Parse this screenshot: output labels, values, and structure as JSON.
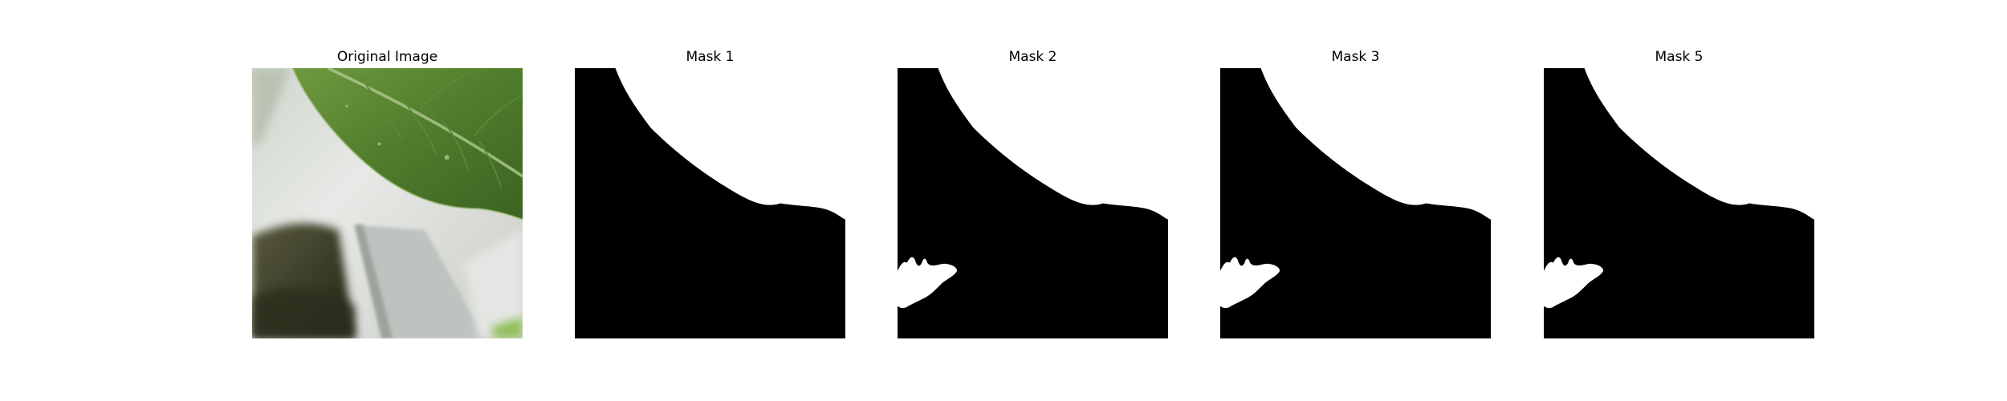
{
  "figure": {
    "panels": [
      {
        "title": "Original Image",
        "kind": "photo"
      },
      {
        "title": "Mask 1",
        "kind": "mask",
        "has_blob": false
      },
      {
        "title": "Mask 2",
        "kind": "mask",
        "has_blob": true
      },
      {
        "title": "Mask 3",
        "kind": "mask",
        "has_blob": true
      },
      {
        "title": "Mask 5",
        "kind": "mask",
        "has_blob": true
      }
    ],
    "colors": {
      "mask_background": "#000000",
      "mask_foreground": "#ffffff",
      "leaf_dark": "#3f6a24",
      "leaf_light": "#7fa24f",
      "photo_background": "#dde1dc",
      "shadow": "#2e3422"
    }
  }
}
